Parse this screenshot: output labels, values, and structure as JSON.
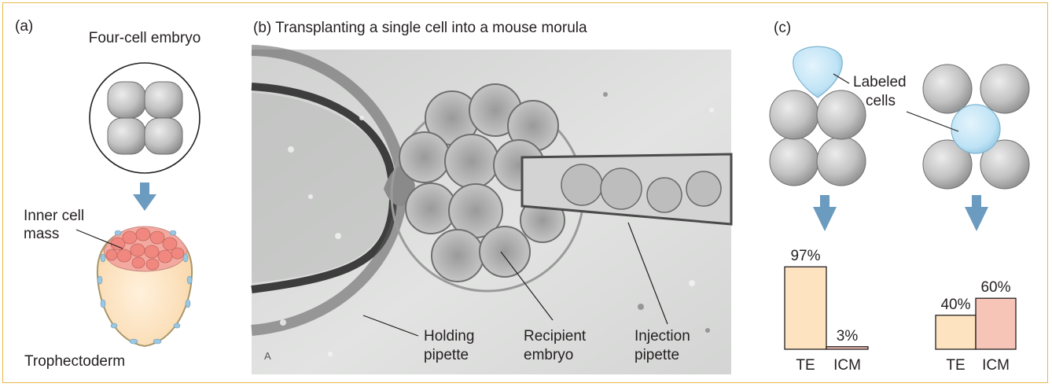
{
  "panel_a": {
    "label": "(a)",
    "embryo_title": "Four-cell embryo",
    "inner_cell_line1": "Inner cell",
    "inner_cell_line2": "mass",
    "trophectoderm": "Trophectoderm"
  },
  "panel_b": {
    "title": "(b) Transplanting a single cell into a mouse morula",
    "holding_line1": "Holding",
    "holding_line2": "pipette",
    "recipient_line1": "Recipient",
    "recipient_line2": "embryo",
    "injection_line1": "Injection",
    "injection_line2": "pipette",
    "photo_mark": "A"
  },
  "panel_c": {
    "label": "(c)",
    "labeled_line1": "Labeled",
    "labeled_line2": "cells"
  },
  "colors": {
    "frame": "#e8b84a",
    "arrow": "#6b9bbf",
    "te_bar": "#fde3c0",
    "icm_bar": "#f7c4b8",
    "labeled_cell": "#bfe3f5",
    "gray_cell": "#c0c0c0"
  },
  "chart_data": [
    {
      "type": "bar",
      "categories": [
        "TE",
        "ICM"
      ],
      "values": [
        97,
        3
      ],
      "value_labels": [
        "97%",
        "3%"
      ],
      "ylim": [
        0,
        100
      ],
      "title": "",
      "xlabel": "",
      "ylabel": ""
    },
    {
      "type": "bar",
      "categories": [
        "TE",
        "ICM"
      ],
      "values": [
        40,
        60
      ],
      "value_labels": [
        "40%",
        "60%"
      ],
      "ylim": [
        0,
        100
      ],
      "title": "",
      "xlabel": "",
      "ylabel": ""
    }
  ]
}
